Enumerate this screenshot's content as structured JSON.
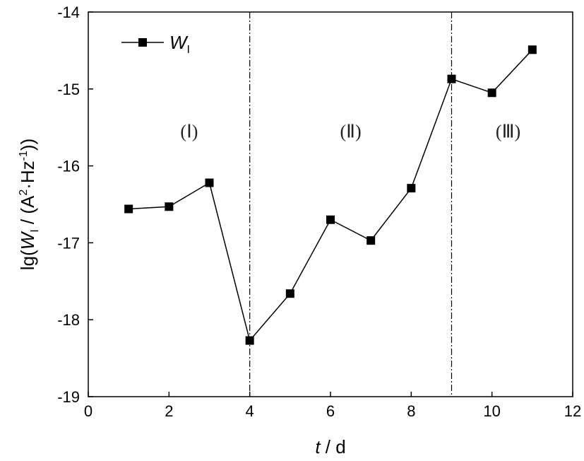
{
  "chart_data": {
    "type": "line",
    "x": [
      1,
      2,
      3,
      4,
      5,
      6,
      7,
      8,
      9,
      10,
      11
    ],
    "series": [
      {
        "name": "W",
        "name_sub": "I",
        "values": [
          -16.56,
          -16.53,
          -16.22,
          -18.27,
          -17.66,
          -16.7,
          -16.97,
          -16.29,
          -14.87,
          -15.05,
          -14.49
        ],
        "color": "#000000",
        "marker": "square"
      }
    ],
    "xlabel": {
      "var": "t",
      "unit": " / d"
    },
    "ylabel": {
      "pre": "lg(",
      "var": "W",
      "sub": "I",
      "mid": " / (A",
      "sup1": "2",
      "dot": "·Hz",
      "sup2": "-1",
      "post": "))"
    },
    "xlim": [
      0,
      12
    ],
    "ylim": [
      -19,
      -14
    ],
    "xticks": [
      0,
      2,
      4,
      6,
      8,
      10,
      12
    ],
    "yticks": [
      -19,
      -18,
      -17,
      -16,
      -15,
      -14
    ],
    "xtick_labels": [
      "0",
      "2",
      "4",
      "6",
      "8",
      "10",
      "12"
    ],
    "ytick_labels": [
      "-19",
      "-18",
      "-17",
      "-16",
      "-15",
      "-14"
    ],
    "vlines": [
      4,
      9
    ],
    "regions": [
      {
        "label": "(Ⅰ)",
        "x": 2.5,
        "y": -15.55
      },
      {
        "label": "(Ⅱ)",
        "x": 6.5,
        "y": -15.55
      },
      {
        "label": "(Ⅲ)",
        "x": 10.4,
        "y": -15.55
      }
    ],
    "legend_position": "top-left",
    "grid": false
  }
}
